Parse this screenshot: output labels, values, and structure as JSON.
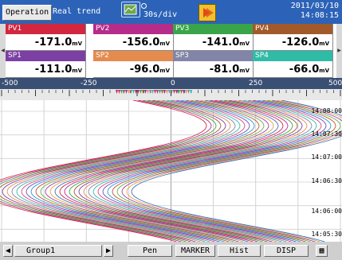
{
  "header": {
    "operation_label": "Operation",
    "mode_label": "Real trend",
    "speed_label": "30s/div",
    "date": "2011/03/10",
    "time": "14:08:15"
  },
  "channels": {
    "pv": [
      {
        "name": "PV1",
        "value": "-171.0",
        "unit": "mV",
        "color": "#d2273f"
      },
      {
        "name": "PV2",
        "value": "-156.0",
        "unit": "mV",
        "color": "#b52c8b"
      },
      {
        "name": "PV3",
        "value": "-141.0",
        "unit": "mV",
        "color": "#3aa44a"
      },
      {
        "name": "PV4",
        "value": "-126.0",
        "unit": "mV",
        "color": "#a35a2a"
      }
    ],
    "sp": [
      {
        "name": "SP1",
        "value": "-111.0",
        "unit": "mV",
        "color": "#7c3fa4"
      },
      {
        "name": "SP2",
        "value": "-96.0",
        "unit": "mV",
        "color": "#e68b4e"
      },
      {
        "name": "SP3",
        "value": "-81.0",
        "unit": "mV",
        "color": "#8385a8"
      },
      {
        "name": "SP4",
        "value": "-66.0",
        "unit": "mV",
        "color": "#2fbca7"
      }
    ]
  },
  "scale": {
    "ticks": [
      "-500",
      "-250",
      "0",
      "250",
      "500"
    ]
  },
  "trend": {
    "time_labels": [
      "14:08:00",
      "14:07:30",
      "14:07:00",
      "14:06:30",
      "14:06:00",
      "14:05:30"
    ]
  },
  "footer": {
    "group_label": "Group1",
    "pen_label": "Pen",
    "marker_label": "MARKER",
    "hist_label": "Hist",
    "disp_label": "DISP"
  }
}
